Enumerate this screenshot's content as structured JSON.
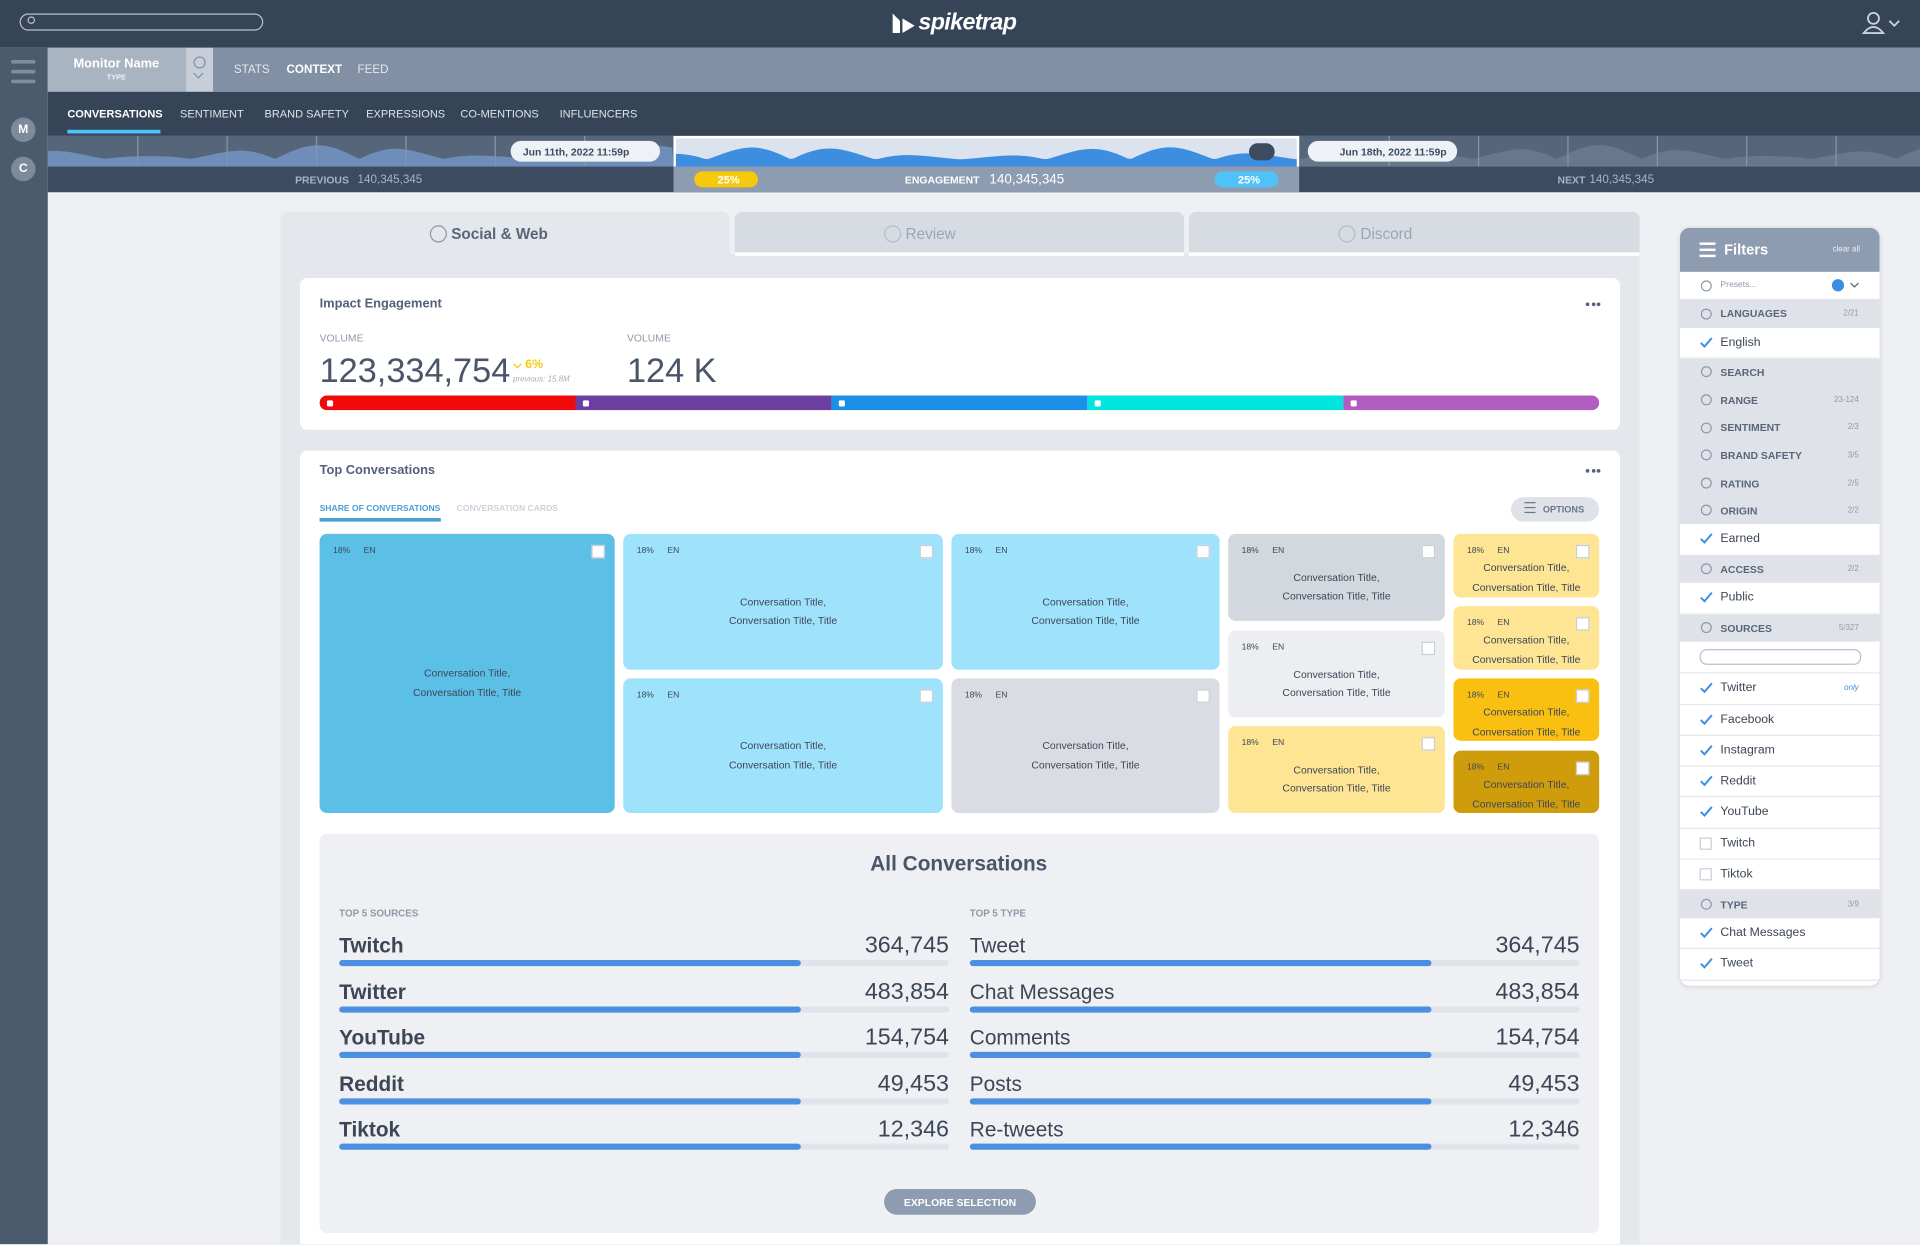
{
  "header": {
    "logo": "spiketrap"
  },
  "sidebar": [
    "M",
    "C"
  ],
  "monitor": {
    "name": "Monitor Name",
    "type": "TYPE"
  },
  "top_tabs": [
    "STATS",
    "CONTEXT",
    "FEED"
  ],
  "context_tabs": [
    "CONVERSATIONS",
    "SENTIMENT",
    "BRAND SAFETY",
    "EXPRESSIONS",
    "CO-MENTIONS",
    "INFLUENCERS"
  ],
  "timeline": {
    "start_date": "Jun 11th, 2022 11:59p",
    "end_date": "Jun 18th, 2022 11:59p",
    "previous_label": "PREVIOUS",
    "previous_value": "140,345,345",
    "left_change": "25%",
    "engagement_label": "ENGAGEMENT",
    "engagement_value": "140,345,345",
    "right_change": "25%",
    "next_label": "NEXT",
    "next_value": "140,345,345"
  },
  "source_tabs": [
    "Social & Web",
    "Review",
    "Discord"
  ],
  "impact": {
    "title": "Impact Engagement",
    "volume_label": "VOLUME",
    "volume": "123,334,754",
    "change": "6%",
    "previous": "previous: 15.8M",
    "volume2_label": "VOLUME",
    "volume2": "124 K"
  },
  "top_conversations": {
    "title": "Top Conversations",
    "tabs": [
      "SHARE OF CONVERSATIONS",
      "CONVERSATION CARDS"
    ],
    "options": "OPTIONS",
    "tiles": [
      {
        "share": "18%",
        "lang": "EN",
        "title": "Conversation Title, Conversation Title, Title"
      },
      {
        "share": "18%",
        "lang": "EN",
        "title": "Conversation Title, Conversation Title, Title"
      },
      {
        "share": "18%",
        "lang": "EN",
        "title": "Conversation Title, Conversation Title, Title"
      },
      {
        "share": "18%",
        "lang": "EN",
        "title": "Conversation Title, Conversation Title, Title"
      },
      {
        "share": "18%",
        "lang": "EN",
        "title": "Conversation Title, Conversation Title, Title"
      },
      {
        "share": "18%",
        "lang": "EN",
        "title": "Conversation Title, Conversation Title, Title"
      },
      {
        "share": "18%",
        "lang": "EN",
        "title": "Conversation Title, Conversation Title, Title"
      },
      {
        "share": "18%",
        "lang": "EN",
        "title": "Conversation Title, Conversation Title, Title"
      },
      {
        "share": "18%",
        "lang": "EN",
        "title": "Conversation Title, Conversation Title, Title"
      },
      {
        "share": "18%",
        "lang": "EN",
        "title": "Conversation Title, Conversation Title, Title"
      },
      {
        "share": "18%",
        "lang": "EN",
        "title": "Conversation Title, Conversation Title, Title"
      },
      {
        "share": "18%",
        "lang": "EN",
        "title": "Conversation Title, Conversation Title, Title"
      }
    ]
  },
  "all_conversations": {
    "title": "All Conversations",
    "sources_label": "TOP 5 SOURCES",
    "types_label": "TOP 5 TYPE",
    "sources": [
      {
        "name": "Twitch",
        "count": "364,745"
      },
      {
        "name": "Twitter",
        "count": "483,854"
      },
      {
        "name": "YouTube",
        "count": "154,754"
      },
      {
        "name": "Reddit",
        "count": "49,453"
      },
      {
        "name": "Tiktok",
        "count": "12,346"
      }
    ],
    "types": [
      {
        "name": "Tweet",
        "count": "364,745"
      },
      {
        "name": "Chat Messages",
        "count": "483,854"
      },
      {
        "name": "Comments",
        "count": "154,754"
      },
      {
        "name": "Posts",
        "count": "49,453"
      },
      {
        "name": "Re-tweets",
        "count": "12,346"
      }
    ],
    "button": "EXPLORE SELECTION"
  },
  "filters": {
    "title": "Filters",
    "clear": "clear all",
    "presets": "Presets...",
    "groups": [
      {
        "name": "LANGUAGES",
        "count": "2/21",
        "options": [
          {
            "label": "English",
            "checked": true
          }
        ]
      },
      {
        "name": "SEARCH"
      },
      {
        "name": "RANGE",
        "count": "23-124"
      },
      {
        "name": "SENTIMENT",
        "count": "2/3"
      },
      {
        "name": "BRAND SAFETY",
        "count": "3/5"
      },
      {
        "name": "RATING",
        "count": "2/5"
      },
      {
        "name": "ORIGIN",
        "count": "2/2",
        "options": [
          {
            "label": "Earned",
            "checked": true
          }
        ]
      },
      {
        "name": "ACCESS",
        "count": "2/2",
        "options": [
          {
            "label": "Public",
            "checked": true
          }
        ]
      },
      {
        "name": "SOURCES",
        "count": "5/327",
        "search": true,
        "options": [
          {
            "label": "Twitter",
            "checked": true,
            "note": "only"
          },
          {
            "label": "Facebook",
            "checked": true
          },
          {
            "label": "Instagram",
            "checked": true
          },
          {
            "label": "Reddit",
            "checked": true
          },
          {
            "label": "YouTube",
            "checked": true
          },
          {
            "label": "Twitch",
            "checked": false
          },
          {
            "label": "Tiktok",
            "checked": false
          }
        ]
      },
      {
        "name": "TYPE",
        "count": "3/9",
        "options": [
          {
            "label": "Chat Messages",
            "checked": true
          },
          {
            "label": "Tweet",
            "checked": true
          }
        ]
      }
    ]
  }
}
